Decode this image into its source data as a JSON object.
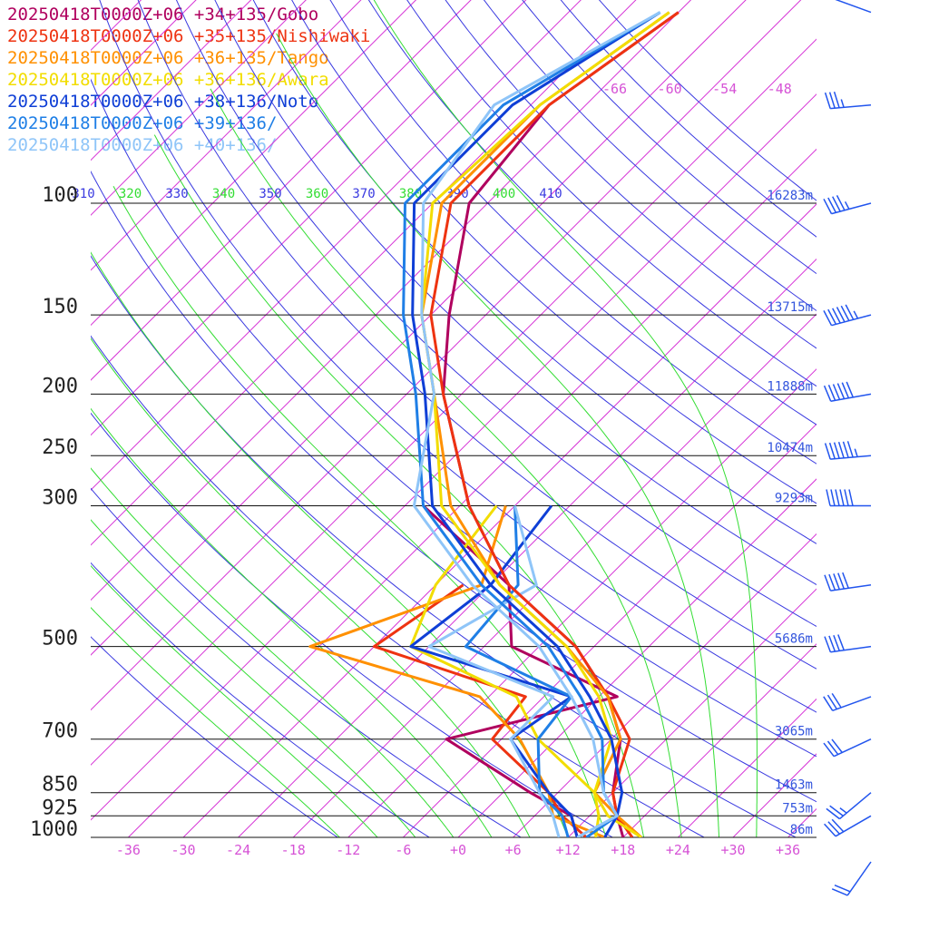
{
  "chart_data": {
    "type": "line",
    "chart_kind": "skew-T log-p sounding",
    "legend_position": "top-left",
    "series": [
      {
        "name": "20250418T0000Z+06 +34+135/Gobo",
        "color": "#b0005e",
        "temperature": [
          [
            1000,
            18
          ],
          [
            925,
            15
          ],
          [
            850,
            12
          ],
          [
            700,
            7
          ],
          [
            600,
            1
          ],
          [
            500,
            -8
          ],
          [
            400,
            -22
          ],
          [
            300,
            -35
          ],
          [
            200,
            -50
          ],
          [
            150,
            -58
          ],
          [
            100,
            -68
          ],
          [
            70,
            -70
          ],
          [
            50,
            -66
          ]
        ],
        "dewpoint": [
          [
            1000,
            13
          ],
          [
            925,
            10
          ],
          [
            850,
            3
          ],
          [
            700,
            -12
          ],
          [
            600,
            2
          ],
          [
            500,
            -15
          ],
          [
            400,
            -22
          ],
          [
            300,
            -40
          ]
        ]
      },
      {
        "name": "20250418T0000Z+06 +35+135/Nishiwaki",
        "color": "#ee3311",
        "temperature": [
          [
            1000,
            19
          ],
          [
            925,
            15
          ],
          [
            850,
            12
          ],
          [
            700,
            8
          ],
          [
            600,
            1
          ],
          [
            500,
            -8
          ],
          [
            400,
            -22
          ],
          [
            300,
            -35
          ],
          [
            200,
            -50
          ],
          [
            150,
            -60
          ],
          [
            100,
            -70
          ],
          [
            70,
            -70
          ],
          [
            50,
            -66
          ]
        ],
        "dewpoint": [
          [
            1000,
            14
          ],
          [
            925,
            9
          ],
          [
            850,
            5
          ],
          [
            700,
            -7
          ],
          [
            600,
            -8
          ],
          [
            500,
            -30
          ],
          [
            400,
            -27
          ]
        ]
      },
      {
        "name": "20250418T0000Z+06 +36+135/Tango",
        "color": "#ff9000",
        "temperature": [
          [
            1000,
            20
          ],
          [
            925,
            15
          ],
          [
            850,
            10
          ],
          [
            700,
            7
          ],
          [
            600,
            1
          ],
          [
            500,
            -9
          ],
          [
            400,
            -23
          ],
          [
            300,
            -37
          ],
          [
            200,
            -51
          ],
          [
            150,
            -61
          ],
          [
            100,
            -71
          ],
          [
            70,
            -71
          ],
          [
            50,
            -67
          ]
        ],
        "dewpoint": [
          [
            1000,
            16
          ],
          [
            925,
            8
          ],
          [
            850,
            5
          ],
          [
            700,
            -4
          ],
          [
            600,
            -13
          ],
          [
            500,
            -37
          ],
          [
            400,
            -25
          ],
          [
            300,
            -31
          ]
        ]
      },
      {
        "name": "20250418T0000Z+06 +36+136/Awara",
        "color": "#f2dd00",
        "temperature": [
          [
            1000,
            20
          ],
          [
            925,
            14
          ],
          [
            850,
            10
          ],
          [
            700,
            6
          ],
          [
            600,
            0
          ],
          [
            500,
            -9
          ],
          [
            400,
            -23
          ],
          [
            300,
            -38
          ],
          [
            200,
            -51
          ],
          [
            150,
            -61
          ],
          [
            100,
            -72
          ],
          [
            70,
            -71
          ],
          [
            50,
            -67
          ]
        ],
        "dewpoint": [
          [
            1000,
            15
          ],
          [
            925,
            13
          ],
          [
            850,
            10
          ],
          [
            700,
            -2
          ],
          [
            600,
            -9
          ],
          [
            500,
            -26
          ],
          [
            400,
            -30
          ],
          [
            300,
            -32
          ]
        ]
      },
      {
        "name": "20250418T0000Z+06 +38+136/Noto",
        "color": "#0f3fd6",
        "temperature": [
          [
            1000,
            16
          ],
          [
            925,
            15
          ],
          [
            850,
            13
          ],
          [
            700,
            6
          ],
          [
            600,
            -1
          ],
          [
            500,
            -10
          ],
          [
            400,
            -24
          ],
          [
            300,
            -39
          ],
          [
            200,
            -52
          ],
          [
            150,
            -62
          ],
          [
            100,
            -74
          ],
          [
            70,
            -74
          ],
          [
            50,
            -68
          ]
        ],
        "dewpoint": [
          [
            1000,
            13
          ],
          [
            925,
            10
          ],
          [
            850,
            5
          ],
          [
            700,
            -5
          ],
          [
            600,
            -3
          ],
          [
            500,
            -26
          ],
          [
            400,
            -24
          ],
          [
            300,
            -26
          ]
        ]
      },
      {
        "name": "20250418T0000Z+06 +39+136/",
        "color": "#1f7fe6",
        "temperature": [
          [
            1000,
            14
          ],
          [
            925,
            15
          ],
          [
            850,
            11
          ],
          [
            700,
            5
          ],
          [
            600,
            -2
          ],
          [
            500,
            -11
          ],
          [
            400,
            -25
          ],
          [
            300,
            -40
          ],
          [
            200,
            -53
          ],
          [
            150,
            -63
          ],
          [
            100,
            -75
          ],
          [
            70,
            -75
          ],
          [
            50,
            -68
          ]
        ],
        "dewpoint": [
          [
            1000,
            12
          ],
          [
            925,
            9
          ],
          [
            850,
            4
          ],
          [
            700,
            -2
          ],
          [
            600,
            -3
          ],
          [
            500,
            -20
          ],
          [
            400,
            -21
          ],
          [
            300,
            -30
          ]
        ]
      },
      {
        "name": "20250418T0000Z+06 +40+136/",
        "color": "#8fc5f8",
        "temperature": [
          [
            1000,
            13
          ],
          [
            925,
            15
          ],
          [
            850,
            11
          ],
          [
            700,
            4
          ],
          [
            600,
            -3
          ],
          [
            500,
            -12
          ],
          [
            400,
            -26
          ],
          [
            300,
            -41
          ],
          [
            200,
            -51
          ],
          [
            150,
            -61
          ],
          [
            100,
            -73
          ],
          [
            70,
            -76
          ],
          [
            50,
            -68
          ]
        ],
        "dewpoint": [
          [
            1000,
            11
          ],
          [
            925,
            8
          ],
          [
            850,
            4
          ],
          [
            700,
            -5
          ],
          [
            600,
            -5
          ],
          [
            500,
            -24
          ],
          [
            400,
            -19
          ],
          [
            300,
            -30
          ]
        ]
      }
    ],
    "pressure_levels": [
      {
        "p": 100,
        "label": "100",
        "height": "16283m"
      },
      {
        "p": 150,
        "label": "150",
        "height": "13715m"
      },
      {
        "p": 200,
        "label": "200",
        "height": "11888m"
      },
      {
        "p": 250,
        "label": "250",
        "height": "10474m"
      },
      {
        "p": 300,
        "label": "300",
        "height": "9293m"
      },
      {
        "p": 500,
        "label": "500",
        "height": "5686m"
      },
      {
        "p": 700,
        "label": "700",
        "height": "3065m"
      },
      {
        "p": 850,
        "label": "850",
        "height": "1463m"
      },
      {
        "p": 925,
        "label": "925",
        "height": "753m"
      },
      {
        "p": 1000,
        "label": "1000",
        "height": "86m"
      }
    ],
    "x_ticks": [
      "-36",
      "-30",
      "-24",
      "-18",
      "-12",
      "-6",
      "+0",
      "+6",
      "+12",
      "+18",
      "+24",
      "+30",
      "+36"
    ],
    "x_tick_values": [
      -36,
      -30,
      -24,
      -18,
      -12,
      -6,
      0,
      6,
      12,
      18,
      24,
      30,
      36
    ],
    "upper_temp_labels": [
      "-66",
      "-60",
      "-54",
      "-48"
    ],
    "upper_temp_values": [
      -66,
      -60,
      -54,
      -48
    ],
    "theta_labels": [
      "310",
      "320",
      "330",
      "340",
      "350",
      "360",
      "370",
      "380",
      "390",
      "400",
      "410"
    ],
    "x_range": [
      -40,
      40
    ],
    "y_range_hpa": [
      1000,
      50
    ],
    "y_scale": "log",
    "grid": true,
    "isotherm_color": "#d633d6",
    "dry_adiabat_color": "#3a3ae0",
    "moist_adiabat_color": "#33dd33",
    "wind_barb_color": "#2255ee",
    "wind_barbs": [
      {
        "p": 50,
        "speed_kt": 10,
        "dir_deg": 290
      },
      {
        "p": 70,
        "speed_kt": 35,
        "dir_deg": 265
      },
      {
        "p": 100,
        "speed_kt": 45,
        "dir_deg": 255
      },
      {
        "p": 150,
        "speed_kt": 65,
        "dir_deg": 255
      },
      {
        "p": 200,
        "speed_kt": 60,
        "dir_deg": 260
      },
      {
        "p": 250,
        "speed_kt": 65,
        "dir_deg": 265
      },
      {
        "p": 300,
        "speed_kt": 60,
        "dir_deg": 270
      },
      {
        "p": 400,
        "speed_kt": 50,
        "dir_deg": 262
      },
      {
        "p": 500,
        "speed_kt": 40,
        "dir_deg": 262
      },
      {
        "p": 600,
        "speed_kt": 30,
        "dir_deg": 250
      },
      {
        "p": 700,
        "speed_kt": 30,
        "dir_deg": 245
      },
      {
        "p": 850,
        "speed_kt": 25,
        "dir_deg": 230
      },
      {
        "p": 925,
        "speed_kt": 30,
        "dir_deg": 240
      },
      {
        "p": 1000,
        "speed_kt": 20,
        "dir_deg": 215
      }
    ]
  }
}
